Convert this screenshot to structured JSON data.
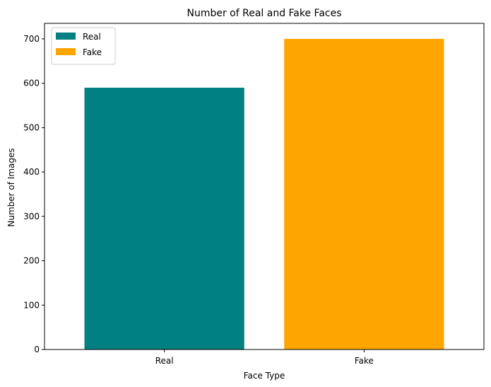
{
  "chart_data": {
    "type": "bar",
    "title": "Number of Real and Fake Faces",
    "xlabel": "Face Type",
    "ylabel": "Number of Images",
    "categories": [
      "Real",
      "Fake"
    ],
    "values": [
      590,
      700
    ],
    "colors": [
      "#008080",
      "#ffa500"
    ],
    "ylim": [
      0,
      735
    ],
    "yticks": [
      0,
      100,
      200,
      300,
      400,
      500,
      600,
      700
    ],
    "grid": false,
    "legend": {
      "placement": "top-left",
      "entries": [
        {
          "label": "Real",
          "color": "#008080"
        },
        {
          "label": "Fake",
          "color": "#ffa500"
        }
      ]
    }
  }
}
